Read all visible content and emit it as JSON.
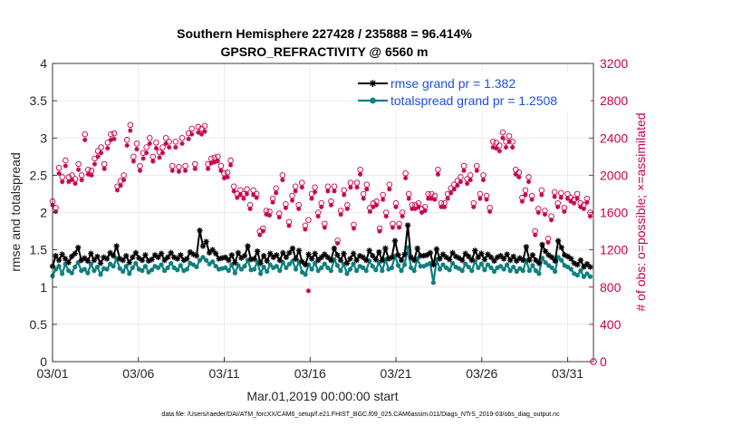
{
  "chart_data": {
    "type": "line",
    "title_line1": "Southern Hemisphere 227428 / 235888 = 96.414%",
    "title_line2": "GPSRO_REFRACTIVITY @ 6560 m",
    "xlabel": "Mar.01,2019 00:00:00 start",
    "ylabel_left": "rmse and totalspread",
    "ylabel_right": "# of obs: o=possible; ×=assimilated",
    "footnote": "data file: /Users/raeder/DAI/ATM_forcXX/CAM6_setup/f.e21.FHIST_BGC.f09_025.CAM6assim.011/Diags_NTrS_2019-03/obs_diag_output.nc",
    "xlim": [
      0,
      31.5
    ],
    "ylim_left": [
      0,
      4
    ],
    "ylim_right": [
      0,
      3200
    ],
    "x_ticks": [
      {
        "value": 0,
        "label": "03/01"
      },
      {
        "value": 5,
        "label": "03/06"
      },
      {
        "value": 10,
        "label": "03/11"
      },
      {
        "value": 15,
        "label": "03/16"
      },
      {
        "value": 20,
        "label": "03/21"
      },
      {
        "value": 25,
        "label": "03/26"
      },
      {
        "value": 30,
        "label": "03/31"
      }
    ],
    "y_ticks_left": [
      "0",
      "0.5",
      "1",
      "1.5",
      "2",
      "2.5",
      "3",
      "3.5",
      "4"
    ],
    "y_ticks_right": [
      "0",
      "400",
      "800",
      "1200",
      "1600",
      "2000",
      "2400",
      "2800",
      "3200"
    ],
    "colors": {
      "rmse": "#000000",
      "spread": "#0f8080",
      "obs": "#c8004e",
      "legend_text": "#1f4fe0",
      "grid": "#ebebeb"
    },
    "series": [
      {
        "name": "rmse grand pr = 1.382",
        "axis": "left",
        "marker": "star",
        "values": [
          1.28,
          1.42,
          1.36,
          1.44,
          1.38,
          1.33,
          1.41,
          1.45,
          1.53,
          1.36,
          1.39,
          1.35,
          1.45,
          1.36,
          1.41,
          1.32,
          1.4,
          1.38,
          1.46,
          1.42,
          1.55,
          1.38,
          1.36,
          1.42,
          1.33,
          1.4,
          1.46,
          1.39,
          1.36,
          1.43,
          1.35,
          1.37,
          1.43,
          1.4,
          1.45,
          1.36,
          1.4,
          1.46,
          1.4,
          1.38,
          1.43,
          1.36,
          1.38,
          1.47,
          1.44,
          1.42,
          1.76,
          1.55,
          1.61,
          1.46,
          1.5,
          1.45,
          1.38,
          1.39,
          1.4,
          1.36,
          1.43,
          1.33,
          1.46,
          1.39,
          1.42,
          1.55,
          1.37,
          1.38,
          1.48,
          1.32,
          1.42,
          1.35,
          1.45,
          1.4,
          1.43,
          1.36,
          1.46,
          1.4,
          1.46,
          1.52,
          1.38,
          1.49,
          1.34,
          1.3,
          1.44,
          1.38,
          1.45,
          1.36,
          1.4,
          1.44,
          1.4,
          1.36,
          1.52,
          1.43,
          1.36,
          1.45,
          1.32,
          1.38,
          1.45,
          1.36,
          1.42,
          1.4,
          1.36,
          1.49,
          1.42,
          1.37,
          1.47,
          1.36,
          1.52,
          1.38,
          1.4,
          1.62,
          1.43,
          1.36,
          1.44,
          1.83,
          1.4,
          1.36,
          1.52,
          1.42,
          1.42,
          1.43,
          1.46,
          1.3,
          1.51,
          1.38,
          1.44,
          1.4,
          1.37,
          1.46,
          1.41,
          1.39,
          1.36,
          1.45,
          1.41,
          1.36,
          1.49,
          1.4,
          1.45,
          1.37,
          1.44,
          1.4,
          1.35,
          1.4,
          1.42,
          1.38,
          1.44,
          1.36,
          1.41,
          1.35,
          1.39,
          1.36,
          1.54,
          1.36,
          1.43,
          1.36,
          1.32,
          1.57,
          1.48,
          1.43,
          1.4,
          1.35,
          1.62,
          1.53,
          1.43,
          1.41,
          1.38,
          1.32,
          1.3,
          1.36,
          1.27,
          1.31,
          1.27
        ]
      },
      {
        "name": "totalspread grand pr = 1.2508",
        "axis": "left",
        "marker": "dot",
        "values": [
          1.15,
          1.24,
          1.28,
          1.18,
          1.31,
          1.22,
          1.19,
          1.27,
          1.33,
          1.22,
          1.24,
          1.19,
          1.31,
          1.22,
          1.27,
          1.17,
          1.25,
          1.24,
          1.31,
          1.28,
          1.38,
          1.25,
          1.21,
          1.28,
          1.18,
          1.26,
          1.32,
          1.24,
          1.22,
          1.28,
          1.2,
          1.23,
          1.28,
          1.26,
          1.3,
          1.22,
          1.26,
          1.32,
          1.26,
          1.23,
          1.29,
          1.22,
          1.24,
          1.32,
          1.3,
          1.27,
          1.36,
          1.4,
          1.36,
          1.31,
          1.34,
          1.28,
          1.24,
          1.25,
          1.26,
          1.22,
          1.3,
          1.19,
          1.29,
          1.24,
          1.28,
          1.36,
          1.23,
          1.24,
          1.34,
          1.18,
          1.27,
          1.21,
          1.3,
          1.26,
          1.28,
          1.22,
          1.33,
          1.26,
          1.31,
          1.35,
          1.24,
          1.34,
          1.2,
          1.17,
          1.3,
          1.24,
          1.32,
          1.22,
          1.26,
          1.31,
          1.26,
          1.22,
          1.37,
          1.29,
          1.22,
          1.31,
          1.18,
          1.24,
          1.31,
          1.22,
          1.28,
          1.26,
          1.22,
          1.35,
          1.28,
          1.23,
          1.33,
          1.22,
          1.37,
          1.24,
          1.26,
          1.42,
          1.29,
          1.22,
          1.3,
          1.53,
          1.26,
          1.22,
          1.38,
          1.28,
          1.28,
          1.3,
          1.32,
          1.06,
          1.37,
          1.24,
          1.3,
          1.26,
          1.23,
          1.32,
          1.27,
          1.25,
          1.22,
          1.31,
          1.27,
          1.22,
          1.35,
          1.26,
          1.31,
          1.23,
          1.3,
          1.26,
          1.21,
          1.26,
          1.28,
          1.24,
          1.3,
          1.22,
          1.27,
          1.21,
          1.25,
          1.22,
          1.36,
          1.22,
          1.29,
          1.22,
          1.18,
          1.39,
          1.33,
          1.29,
          1.26,
          1.21,
          1.4,
          1.36,
          1.29,
          1.27,
          1.24,
          1.18,
          1.16,
          1.22,
          1.14,
          1.18,
          1.14
        ]
      },
      {
        "name": "obs possible",
        "axis": "right",
        "marker": "circle",
        "values": [
          1720,
          1650,
          2080,
          1980,
          2160,
          1980,
          2000,
          1960,
          2120,
          2000,
          2440,
          2060,
          2050,
          2180,
          2260,
          2300,
          2120,
          2350,
          2440,
          2450,
          1880,
          1940,
          2000,
          2380,
          2540,
          2200,
          2340,
          2100,
          2240,
          2300,
          2400,
          2200,
          2350,
          2250,
          2300,
          2400,
          2360,
          2100,
          2360,
          2090,
          2400,
          2100,
          2450,
          2500,
          2120,
          2520,
          2500,
          2530,
          2120,
          2180,
          2190,
          2200,
          2100,
          2020,
          2030,
          2160,
          1880,
          1800,
          1840,
          1800,
          1850,
          1680,
          1840,
          1800,
          1400,
          1430,
          1620,
          1610,
          1750,
          1860,
          1590,
          2000,
          1690,
          1500,
          1780,
          1880,
          1680,
          1920,
          1460,
          1520,
          1800,
          1870,
          1600,
          1700,
          1480,
          1880,
          1720,
          1880,
          1300,
          1620,
          1840,
          1680,
          1920,
          1470,
          1920,
          2060,
          1800,
          1900,
          1650,
          1700,
          1720,
          1430,
          1790,
          1600,
          1900,
          1480,
          1700,
          1480,
          1600,
          2020,
          1800,
          1680,
          1680,
          1700,
          1640,
          1660,
          1800,
          1800,
          1780,
          2060,
          1700,
          1700,
          1800,
          1860,
          1900,
          1940,
          1980,
          2100,
          1960,
          2000,
          1700,
          2100,
          1800,
          2000,
          1780,
          1650,
          2360,
          2350,
          2320,
          2460,
          2360,
          2420,
          2360,
          2060,
          2030,
          1760,
          1840,
          1980,
          1780,
          1400,
          1640,
          1840,
          1620,
          1320,
          1560,
          1820,
          1700,
          1810,
          1650,
          1800,
          1760,
          1740,
          1800,
          1700,
          1680,
          1750,
          1600
        ]
      },
      {
        "name": "obs assimilated",
        "axis": "right",
        "marker": "x",
        "values": [
          1680,
          1610,
          2020,
          1930,
          2100,
          1930,
          1950,
          1910,
          2060,
          1950,
          2380,
          2010,
          2000,
          2120,
          2200,
          2240,
          2070,
          2290,
          2380,
          2390,
          1840,
          1890,
          1950,
          2320,
          2480,
          2150,
          2280,
          2050,
          2180,
          2240,
          2340,
          2150,
          2290,
          2190,
          2240,
          2340,
          2300,
          2050,
          2300,
          2040,
          2340,
          2050,
          2390,
          2440,
          2070,
          2460,
          2440,
          2470,
          2070,
          2130,
          2140,
          2150,
          2050,
          1970,
          1980,
          2110,
          1830,
          1760,
          1790,
          1750,
          1800,
          1640,
          1790,
          1760,
          1360,
          1400,
          1580,
          1570,
          1710,
          1810,
          1550,
          1950,
          1650,
          1460,
          1730,
          1830,
          1640,
          1870,
          1420,
          760,
          1750,
          1820,
          1560,
          1660,
          1440,
          1830,
          1680,
          1830,
          1270,
          1580,
          1790,
          1640,
          1870,
          1430,
          1870,
          2010,
          1750,
          1850,
          1610,
          1660,
          1680,
          1400,
          1740,
          1560,
          1850,
          1440,
          1660,
          1440,
          1560,
          1970,
          1750,
          1640,
          1640,
          1660,
          1600,
          1620,
          1750,
          1750,
          1740,
          2010,
          1660,
          1660,
          1750,
          1810,
          1850,
          1890,
          1930,
          2050,
          1910,
          1950,
          1660,
          2050,
          1750,
          1950,
          1740,
          1610,
          2300,
          2290,
          2260,
          2400,
          2300,
          2360,
          2300,
          2010,
          1980,
          1720,
          1790,
          1930,
          1740,
          1360,
          1600,
          1790,
          1580,
          1280,
          1520,
          1770,
          1660,
          1760,
          1610,
          1750,
          1720,
          1700,
          1750,
          1660,
          1640,
          1710,
          1560
        ]
      }
    ]
  }
}
